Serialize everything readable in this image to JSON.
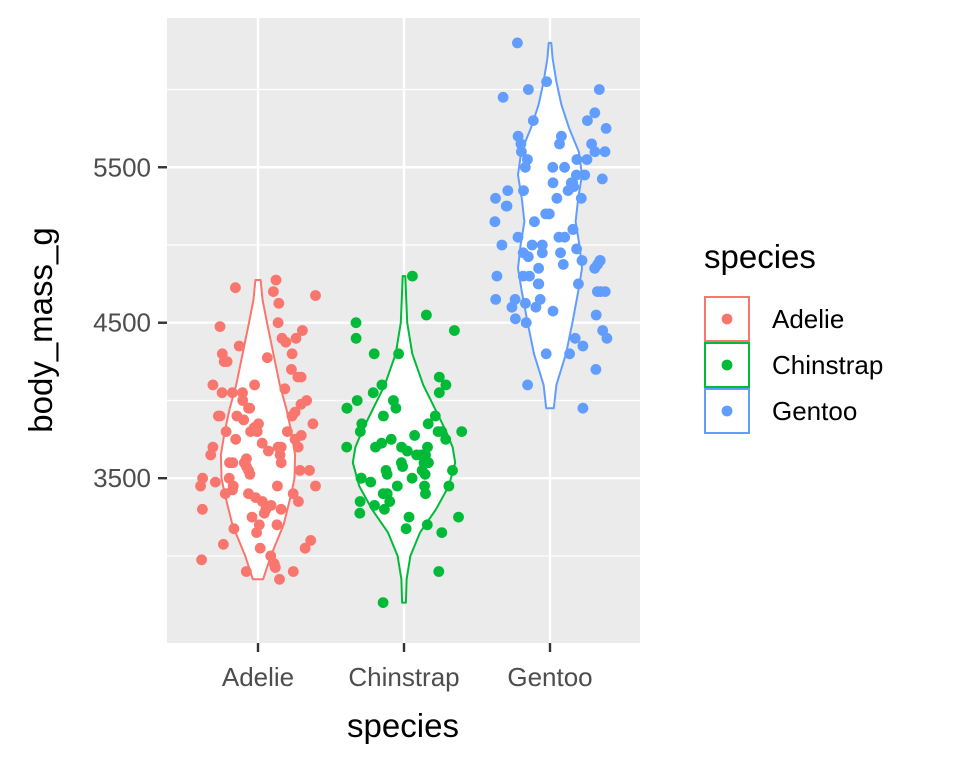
{
  "chart_data": {
    "type": "violin",
    "overlay": "jitter-points",
    "title": "",
    "xlabel": "species",
    "ylabel": "body_mass_g",
    "categories": [
      "Adelie",
      "Chinstrap",
      "Gentoo"
    ],
    "ylim": [
      2440,
      6460
    ],
    "yticks": [
      3500,
      4500,
      5500
    ],
    "y_tick_labels": [
      "3500",
      "4500",
      "5500"
    ],
    "grid": true,
    "legend": {
      "title": "species",
      "position": "right",
      "entries": [
        "Adelie",
        "Chinstrap",
        "Gentoo"
      ]
    },
    "colors": {
      "Adelie": "#F8766D",
      "Chinstrap": "#00BA38",
      "Gentoo": "#619CFF",
      "panel": "#EBEBEB",
      "grid": "#FFFFFF"
    },
    "violins": [
      {
        "name": "Adelie",
        "range": [
          2850,
          4775
        ],
        "profile": [
          [
            2850,
            0.08
          ],
          [
            3000,
            0.2
          ],
          [
            3200,
            0.4
          ],
          [
            3400,
            0.52
          ],
          [
            3500,
            0.57
          ],
          [
            3650,
            0.58
          ],
          [
            3800,
            0.52
          ],
          [
            3950,
            0.44
          ],
          [
            4100,
            0.34
          ],
          [
            4300,
            0.24
          ],
          [
            4500,
            0.14
          ],
          [
            4650,
            0.07
          ],
          [
            4775,
            0.04
          ]
        ]
      },
      {
        "name": "Chinstrap",
        "range": [
          2700,
          4800
        ],
        "profile": [
          [
            2700,
            0.03
          ],
          [
            2850,
            0.04
          ],
          [
            3000,
            0.1
          ],
          [
            3150,
            0.25
          ],
          [
            3300,
            0.5
          ],
          [
            3450,
            0.7
          ],
          [
            3600,
            0.8
          ],
          [
            3700,
            0.76
          ],
          [
            3800,
            0.66
          ],
          [
            3950,
            0.48
          ],
          [
            4100,
            0.3
          ],
          [
            4300,
            0.13
          ],
          [
            4500,
            0.05
          ],
          [
            4700,
            0.03
          ],
          [
            4800,
            0.02
          ]
        ]
      },
      {
        "name": "Gentoo",
        "range": [
          3950,
          6300
        ],
        "profile": [
          [
            3950,
            0.06
          ],
          [
            4100,
            0.1
          ],
          [
            4300,
            0.25
          ],
          [
            4500,
            0.35
          ],
          [
            4700,
            0.44
          ],
          [
            4850,
            0.5
          ],
          [
            5000,
            0.46
          ],
          [
            5150,
            0.4
          ],
          [
            5300,
            0.44
          ],
          [
            5450,
            0.5
          ],
          [
            5600,
            0.45
          ],
          [
            5750,
            0.3
          ],
          [
            5900,
            0.18
          ],
          [
            6050,
            0.1
          ],
          [
            6200,
            0.04
          ],
          [
            6300,
            0.02
          ]
        ]
      }
    ],
    "points": [
      {
        "name": "Adelie",
        "y": [
          4775,
          4725,
          4700,
          4675,
          4625,
          4500,
          4475,
          4450,
          4400,
          4400,
          4375,
          4350,
          4300,
          4300,
          4275,
          4250,
          4250,
          4200,
          4150,
          4150,
          4100,
          4100,
          4075,
          4050,
          4050,
          4000,
          4000,
          3975,
          3950,
          3950,
          3925,
          3900,
          3900,
          3900,
          3875,
          3850,
          3850,
          3825,
          3800,
          3800,
          3800,
          3775,
          3750,
          3750,
          3725,
          3700,
          3700,
          3700,
          3675,
          3650,
          3650,
          3625,
          3600,
          3600,
          3600,
          3575,
          3550,
          3550,
          3525,
          3500,
          3500,
          3475,
          3450,
          3450,
          3450,
          3425,
          3400,
          3400,
          3400,
          3375,
          3350,
          3350,
          3325,
          3300,
          3300,
          3275,
          3250,
          3200,
          3200,
          3175,
          3150,
          3100,
          3075,
          3050,
          3050,
          3000,
          2975,
          2950,
          2925,
          2900,
          2900,
          2850,
          3600,
          3900,
          3450,
          3800,
          4050,
          3300,
          3700,
          3550
        ]
      },
      {
        "name": "Chinstrap",
        "y": [
          4800,
          4550,
          4500,
          4450,
          4400,
          4300,
          4300,
          4150,
          4100,
          4100,
          4050,
          4050,
          4000,
          3950,
          3950,
          3900,
          3850,
          3800,
          3800,
          3800,
          3775,
          3750,
          3725,
          3700,
          3700,
          3675,
          3650,
          3650,
          3600,
          3575,
          3550,
          3550,
          3525,
          3500,
          3500,
          3475,
          3450,
          3450,
          3400,
          3400,
          3400,
          3350,
          3325,
          3300,
          3275,
          3250,
          3250,
          3200,
          3175,
          3150,
          2900,
          2700,
          3600,
          3700,
          3850,
          3450,
          3550,
          3950,
          3650,
          3750,
          4000,
          3500,
          3350,
          3800,
          3900,
          3600,
          3700,
          3525
        ]
      },
      {
        "name": "Gentoo",
        "y": [
          6300,
          6050,
          6000,
          6000,
          5950,
          5850,
          5800,
          5750,
          5700,
          5650,
          5650,
          5600,
          5600,
          5550,
          5550,
          5550,
          5500,
          5500,
          5450,
          5400,
          5400,
          5400,
          5350,
          5350,
          5300,
          5300,
          5250,
          5200,
          5200,
          5150,
          5100,
          5050,
          5050,
          5000,
          5000,
          4950,
          4950,
          4925,
          4900,
          4900,
          4875,
          4850,
          4850,
          4800,
          4800,
          4750,
          4750,
          4700,
          4700,
          4650,
          4650,
          4600,
          4600,
          4550,
          4500,
          4450,
          4400,
          4400,
          4350,
          4300,
          4300,
          4200,
          4100,
          3950,
          5700,
          5500,
          5300,
          5000,
          4875,
          4750,
          5150,
          5350,
          4625,
          5800,
          4975,
          5425,
          4575,
          5600,
          4525,
          5250,
          5050,
          4700,
          5450,
          4950,
          4800,
          5650,
          4900,
          5100,
          5375,
          4650
        ]
      }
    ]
  }
}
